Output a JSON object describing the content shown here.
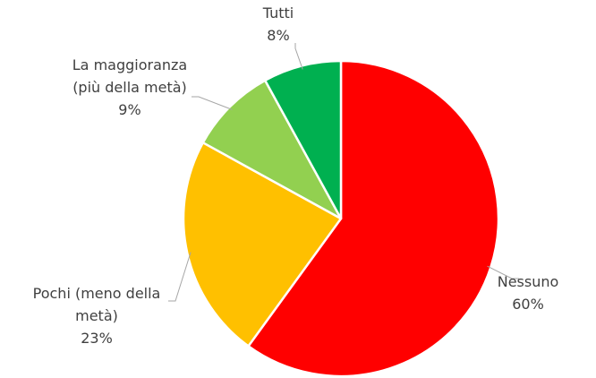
{
  "chart_data": {
    "type": "pie",
    "title": "",
    "slices": [
      {
        "label": "Nessuno",
        "label_lines": [
          "Nessuno"
        ],
        "value": 60,
        "value_label": "60%",
        "color": "#ff0000"
      },
      {
        "label": "Pochi (meno della metà)",
        "label_lines": [
          "Pochi (meno della",
          "metà)"
        ],
        "value": 23,
        "value_label": "23%",
        "color": "#ffc000"
      },
      {
        "label": "La maggioranza (più della metà)",
        "label_lines": [
          "La maggioranza",
          "(più della metà)"
        ],
        "value": 9,
        "value_label": "9%",
        "color": "#92d050"
      },
      {
        "label": "Tutti",
        "label_lines": [
          "Tutti"
        ],
        "value": 8,
        "value_label": "8%",
        "color": "#00b050"
      }
    ],
    "legend": "none",
    "data_labels": "outside with leader lines"
  }
}
